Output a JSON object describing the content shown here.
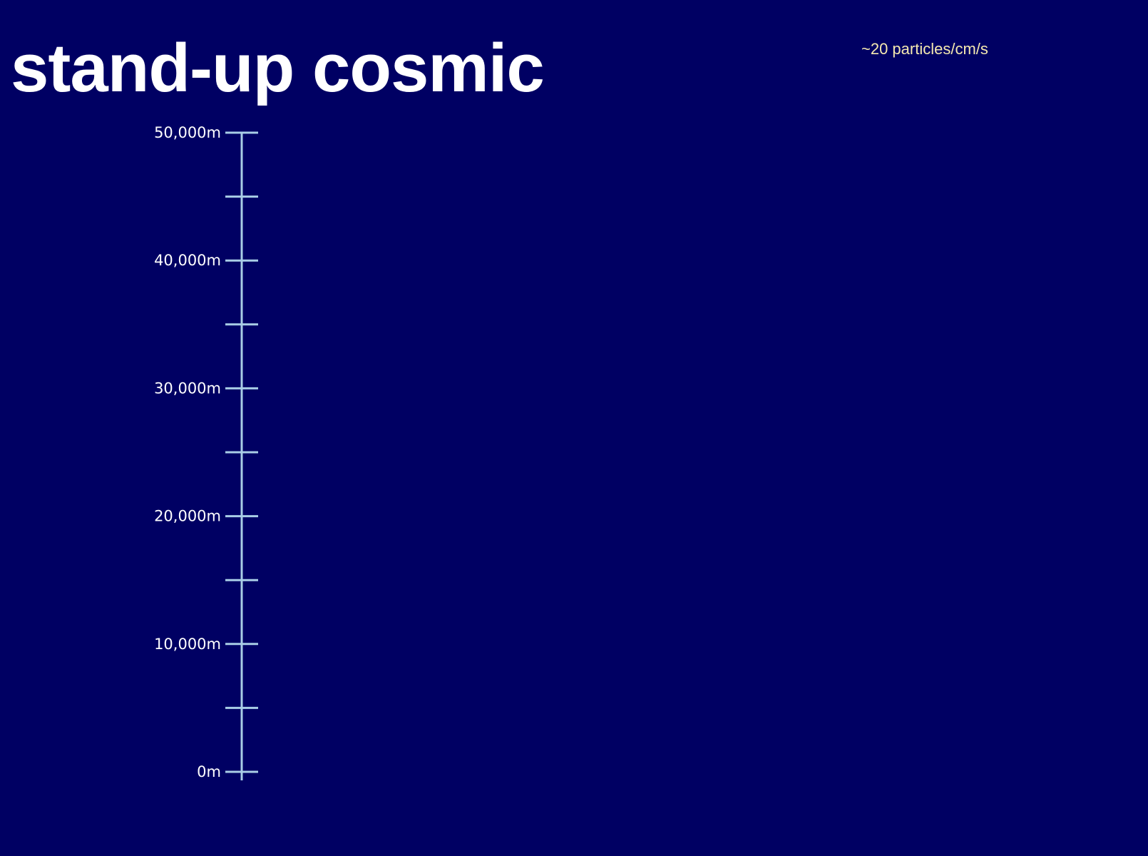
{
  "slide": {
    "title": "stand-up cosmic",
    "rate_text": "~20 particles/cm/s"
  },
  "colors": {
    "background": "#000063",
    "title": "#ffffff",
    "rate_text": "#f5e9b0",
    "scale_line": "#a9cde6",
    "tick_label": "#ffffff"
  },
  "altitude_scale": {
    "unit": "m",
    "min": 0,
    "max": 50000,
    "major_ticks": [
      {
        "value": 50000,
        "label": "50,000m"
      },
      {
        "value": 40000,
        "label": "40,000m"
      },
      {
        "value": 30000,
        "label": "30,000m"
      },
      {
        "value": 20000,
        "label": "20,000m"
      },
      {
        "value": 10000,
        "label": "10,000m"
      },
      {
        "value": 0,
        "label": "0m"
      }
    ],
    "minor_ticks": [
      45000,
      35000,
      25000,
      15000,
      5000
    ]
  }
}
